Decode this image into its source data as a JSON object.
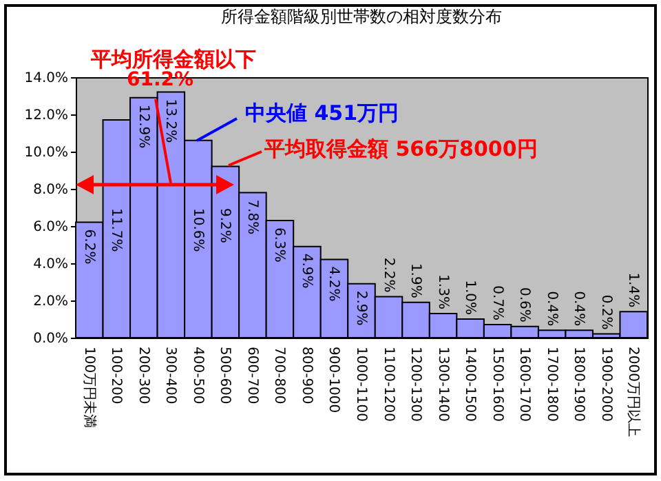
{
  "chart_data": {
    "type": "bar",
    "title": "所得金額階級別世帯数の相対度数分布",
    "categories": [
      "100万円未満",
      "100-200",
      "200-300",
      "300-400",
      "400-500",
      "500-600",
      "600-700",
      "700-800",
      "800-900",
      "900-1000",
      "1000-1100",
      "1100-1200",
      "1200-1300",
      "1300-1400",
      "1400-1500",
      "1500-1600",
      "1600-1700",
      "1700-1800",
      "1800-1900",
      "1900-2000",
      "2000万円以上"
    ],
    "values": [
      6.2,
      11.7,
      12.9,
      13.2,
      10.6,
      9.2,
      7.8,
      6.3,
      4.9,
      4.2,
      2.9,
      2.2,
      1.9,
      1.3,
      1.0,
      0.7,
      0.6,
      0.4,
      0.4,
      0.2,
      1.4
    ],
    "value_labels": [
      "6.2%",
      "11.7%",
      "12.9%",
      "13.2%",
      "10.6%",
      "9.2%",
      "7.8%",
      "6.3%",
      "4.9%",
      "4.2%",
      "2.9%",
      "2.2%",
      "1.9%",
      "1.3%",
      "1.0%",
      "0.7%",
      "0.6%",
      "0.4%",
      "0.4%",
      "0.2%",
      "1.4%"
    ],
    "color": "#9999ff",
    "ylim": [
      0,
      14
    ],
    "yticks": [
      {
        "value": 0,
        "label": "0.0%"
      },
      {
        "value": 2,
        "label": "2.0%"
      },
      {
        "value": 4,
        "label": "4.0%"
      },
      {
        "value": 6,
        "label": "6.0%"
      },
      {
        "value": 8,
        "label": "8.0%"
      },
      {
        "value": 10,
        "label": "10.0%"
      },
      {
        "value": 12,
        "label": "12.0%"
      },
      {
        "value": 14,
        "label": "14.0%"
      }
    ],
    "grid": false,
    "annotations": [
      "平均所得金額以下",
      "61.2%",
      "中央値 451万円",
      "平均取得金額 566万8000円"
    ]
  }
}
